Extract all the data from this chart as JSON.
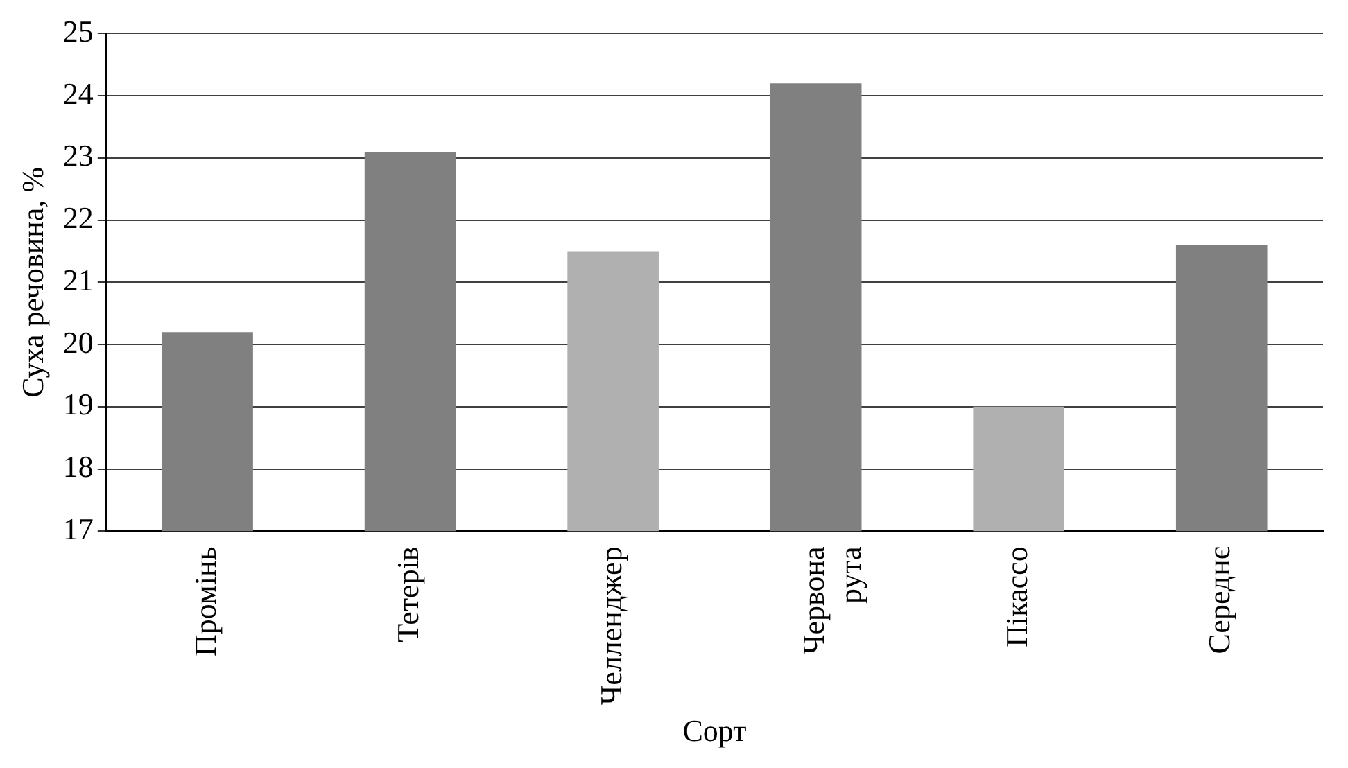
{
  "chart_data": {
    "type": "bar",
    "xlabel": "Сорт",
    "ylabel": "Суха речовина, %",
    "categories": [
      "Промінь",
      "Тетерів",
      "Челленджер",
      "Червона рута",
      "Пікассо",
      "Середнє"
    ],
    "values": [
      20.2,
      23.1,
      21.5,
      24.2,
      19.0,
      21.6
    ],
    "colors": [
      "#808080",
      "#808080",
      "#b0b0b0",
      "#808080",
      "#b0b0b0",
      "#808080"
    ],
    "ylim": [
      17,
      25
    ],
    "yticks": [
      17,
      18,
      19,
      20,
      21,
      22,
      23,
      24,
      25
    ],
    "grid": "y",
    "legend": false
  }
}
